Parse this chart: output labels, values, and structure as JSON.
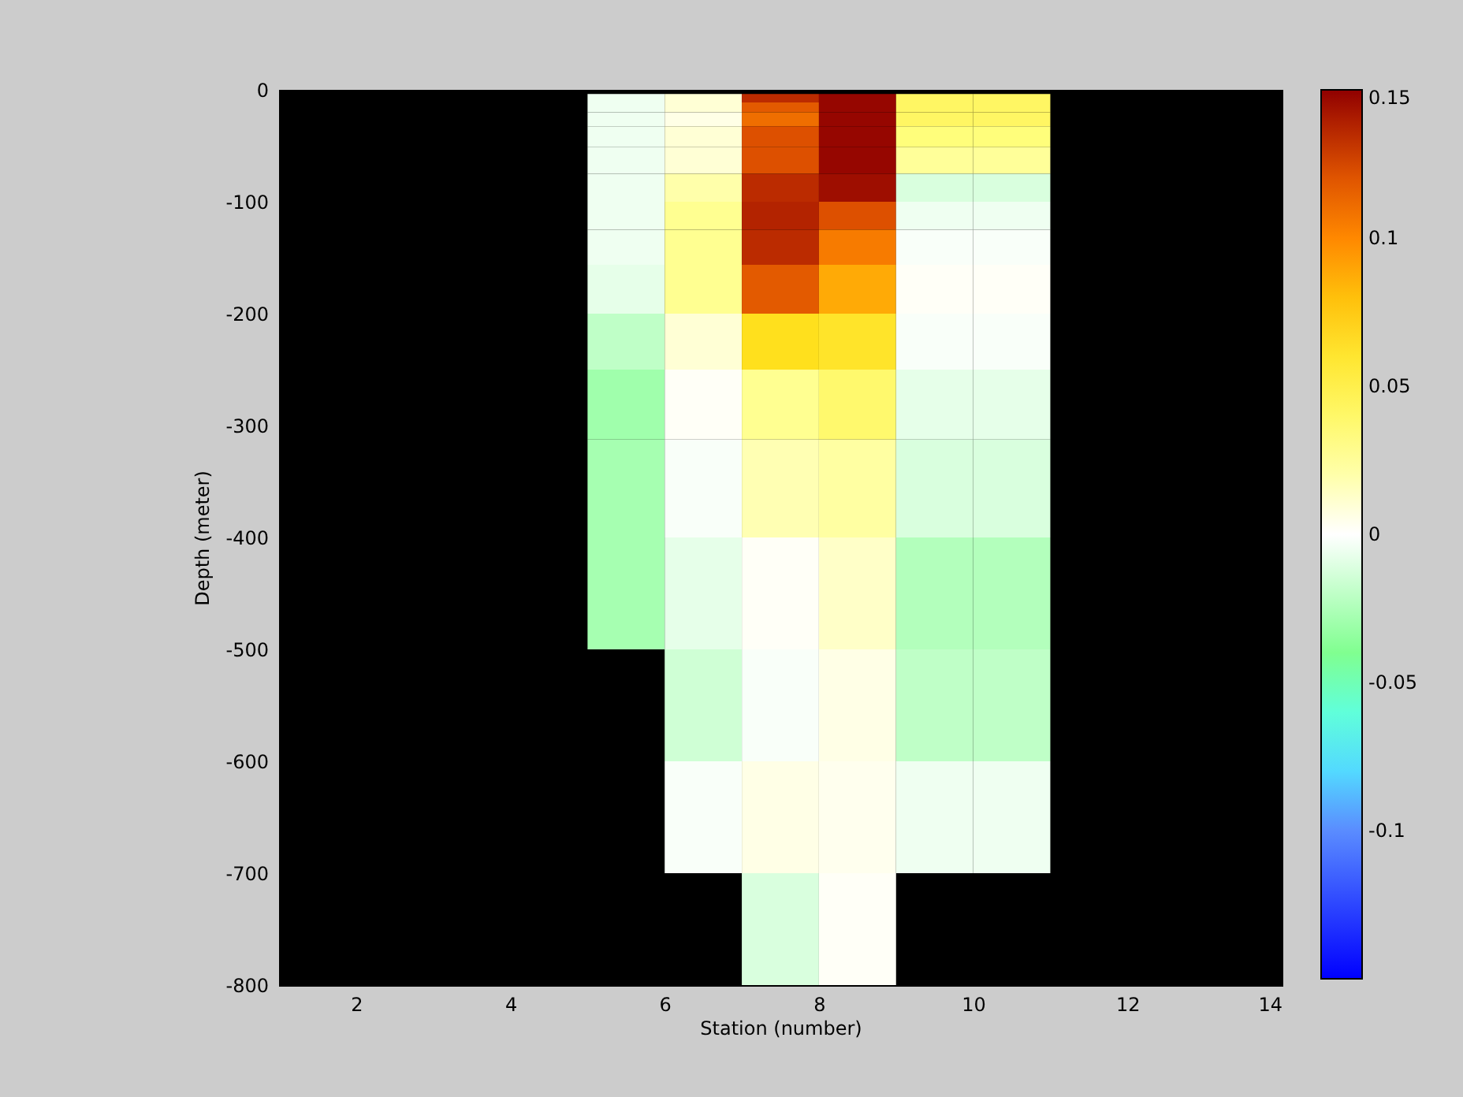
{
  "chart_data": {
    "type": "heatmap",
    "xlabel": "Station (number)",
    "ylabel": "Depth (meter)",
    "x": [
      5.5,
      6.5,
      7.5,
      8.5,
      9.5,
      10.5
    ],
    "y": [
      -7.5,
      -15,
      -25,
      -40,
      -62.5,
      -87.5,
      -112.5,
      -137.5,
      -175,
      -225,
      -275,
      -350,
      -450,
      -550,
      -650,
      -750
    ],
    "cells": [
      [
        -0.005,
        0.01,
        0.135,
        0.148,
        0.042,
        0.042
      ],
      [
        -0.005,
        0.01,
        0.118,
        0.148,
        0.042,
        0.042
      ],
      [
        -0.005,
        0.006,
        0.11,
        0.148,
        0.042,
        0.042
      ],
      [
        -0.005,
        0.01,
        0.122,
        0.148,
        0.032,
        0.032
      ],
      [
        -0.005,
        0.01,
        0.122,
        0.148,
        0.024,
        0.024
      ],
      [
        -0.005,
        0.02,
        0.135,
        0.145,
        -0.012,
        -0.012
      ],
      [
        -0.005,
        0.026,
        0.138,
        0.122,
        -0.005,
        -0.005
      ],
      [
        -0.005,
        0.026,
        0.135,
        0.105,
        -0.002,
        -0.002
      ],
      [
        -0.008,
        0.026,
        0.118,
        0.088,
        0.002,
        0.002
      ],
      [
        -0.02,
        0.01,
        0.066,
        0.062,
        -0.002,
        -0.002
      ],
      [
        -0.03,
        0.002,
        0.026,
        0.038,
        -0.008,
        -0.008
      ],
      [
        -0.028,
        -0.002,
        0.018,
        0.022,
        -0.012,
        -0.012
      ],
      [
        -0.028,
        -0.008,
        0.002,
        0.013,
        -0.024,
        -0.024
      ],
      [
        null,
        -0.015,
        -0.002,
        0.006,
        -0.02,
        -0.02
      ],
      [
        null,
        -0.002,
        0.006,
        0.004,
        -0.005,
        -0.005
      ],
      [
        null,
        null,
        -0.012,
        0.002,
        null,
        null
      ]
    ],
    "xlim": [
      1,
      14
    ],
    "xticks": [
      2,
      4,
      6,
      8,
      10,
      12,
      14
    ],
    "ylim": [
      -800,
      0
    ],
    "yticks": [
      0,
      -100,
      -200,
      -300,
      -400,
      -500,
      -600,
      -700,
      -800
    ],
    "clim": [
      -0.15,
      0.15
    ],
    "cticks": [
      -0.1,
      -0.05,
      0,
      0.05,
      0.1,
      0.15
    ]
  }
}
